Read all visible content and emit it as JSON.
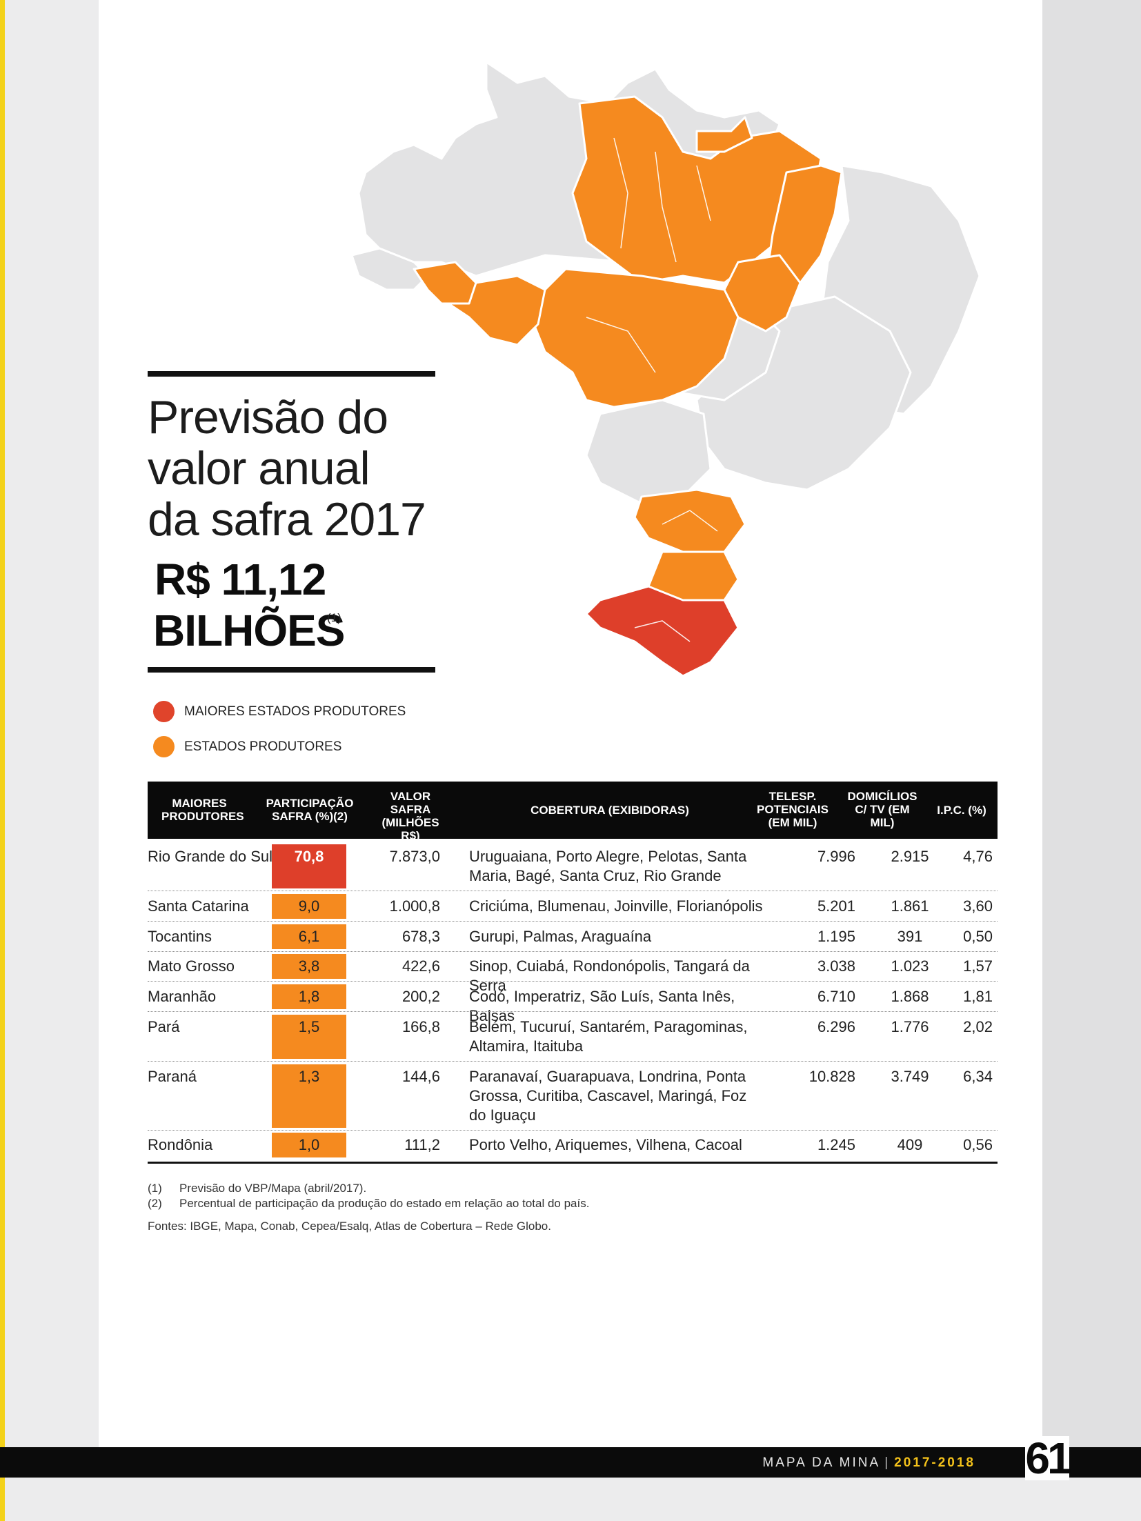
{
  "title": {
    "lines": [
      "Previsão do",
      "valor anual",
      "da safra 2017"
    ],
    "value": "R$ 11,12",
    "unit": "BILHÕES",
    "note": "(1)"
  },
  "legend": {
    "major": {
      "label": "MAIORES ESTADOS PRODUTORES",
      "color": "#e0442b"
    },
    "producers": {
      "label": "ESTADOS PRODUTORES",
      "color": "#f58a1f"
    }
  },
  "map": {
    "colors": {
      "base": "#e3e3e4",
      "producer": "#f58a1f",
      "major": "#de3f2a",
      "border": "#ffffff"
    }
  },
  "table": {
    "headers": {
      "state": "MAIORES PRODUTORES",
      "share": "PARTICIPAÇÃO SAFRA (%)(2)",
      "value": "VALOR SAFRA (MILHÕES R$)",
      "coverage": "COBERTURA (EXIBIDORAS)",
      "viewers": "TELESP. POTENCIAIS (EM MIL)",
      "households": "DOMICÍLIOS C/ TV (EM MIL)",
      "ipc": "I.P.C. (%)"
    },
    "rows": [
      {
        "state": "Rio Grande do Sul",
        "share": "70,8",
        "value": "7.873,0",
        "coverage": "Uruguaiana, Porto Alegre, Pelotas, Santa Maria, Bagé, Santa Cruz, Rio Grande",
        "viewers": "7.996",
        "households": "2.915",
        "ipc": "4,76"
      },
      {
        "state": "Santa Catarina",
        "share": "9,0",
        "value": "1.000,8",
        "coverage": "Criciúma, Blumenau, Joinville, Florianópolis",
        "viewers": "5.201",
        "households": "1.861",
        "ipc": "3,60"
      },
      {
        "state": "Tocantins",
        "share": "6,1",
        "value": "678,3",
        "coverage": "Gurupi, Palmas, Araguaína",
        "viewers": "1.195",
        "households": "391",
        "ipc": "0,50"
      },
      {
        "state": "Mato Grosso",
        "share": "3,8",
        "value": "422,6",
        "coverage": "Sinop, Cuiabá, Rondonópolis, Tangará da Serra",
        "viewers": "3.038",
        "households": "1.023",
        "ipc": "1,57"
      },
      {
        "state": "Maranhão",
        "share": "1,8",
        "value": "200,2",
        "coverage": "Codó, Imperatriz, São Luís, Santa Inês, Balsas",
        "viewers": "6.710",
        "households": "1.868",
        "ipc": "1,81"
      },
      {
        "state": "Pará",
        "share": "1,5",
        "value": "166,8",
        "coverage": "Belém, Tucuruí, Santarém, Paragominas, Altamira, Itaituba",
        "viewers": "6.296",
        "households": "1.776",
        "ipc": "2,02"
      },
      {
        "state": "Paraná",
        "share": "1,3",
        "value": "144,6",
        "coverage": "Paranavaí, Guarapuava, Londrina, Ponta Grossa, Curitiba, Cascavel, Maringá, Foz do Iguaçu",
        "viewers": "10.828",
        "households": "3.749",
        "ipc": "6,34"
      },
      {
        "state": "Rondônia",
        "share": "1,0",
        "value": "111,2",
        "coverage": "Porto Velho, Ariquemes, Vilhena, Cacoal",
        "viewers": "1.245",
        "households": "409",
        "ipc": "0,56"
      }
    ]
  },
  "notes": {
    "n1_idx": "(1)",
    "n1": "Previsão do VBP/Mapa (abril/2017).",
    "n2_idx": "(2)",
    "n2": "Percentual de participação da produção do estado em relação ao total do país.",
    "sources": "Fontes: IBGE, Mapa, Conab, Cepea/Esalq, Atlas de Cobertura – Rede Globo."
  },
  "footer": {
    "publication": "MAPA DA MINA",
    "years": "2017-2018",
    "page": "61"
  }
}
